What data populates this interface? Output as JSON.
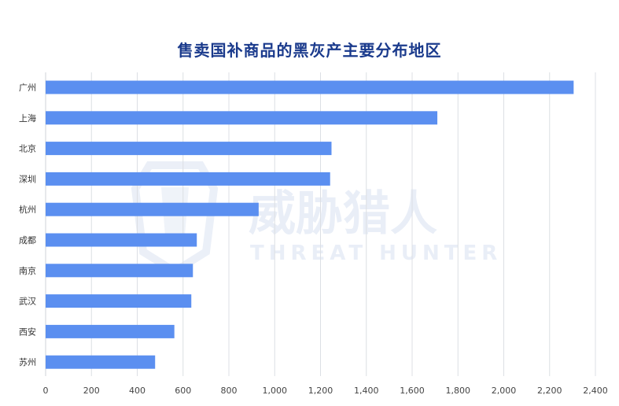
{
  "chart_data": {
    "type": "bar",
    "orientation": "horizontal",
    "title": "售卖国补商品的黑灰产主要分布地区",
    "categories": [
      "广州",
      "上海",
      "北京",
      "深圳",
      "杭州",
      "成都",
      "南京",
      "武汉",
      "西安",
      "苏州"
    ],
    "values": [
      2305,
      1710,
      1248,
      1242,
      930,
      660,
      643,
      636,
      562,
      478
    ],
    "xlim": [
      0,
      2400
    ],
    "xticks": [
      "0",
      "200",
      "400",
      "600",
      "800",
      "1,000",
      "1,200",
      "1,400",
      "1,600",
      "1,800",
      "2,000",
      "2,200",
      "2,400"
    ],
    "xlabel": "",
    "ylabel": "",
    "grid": "vertical",
    "bar_color": "#5b8ff0"
  },
  "watermark": {
    "main_text": "威胁猎人",
    "sub_text": "THREAT HUNTER"
  }
}
